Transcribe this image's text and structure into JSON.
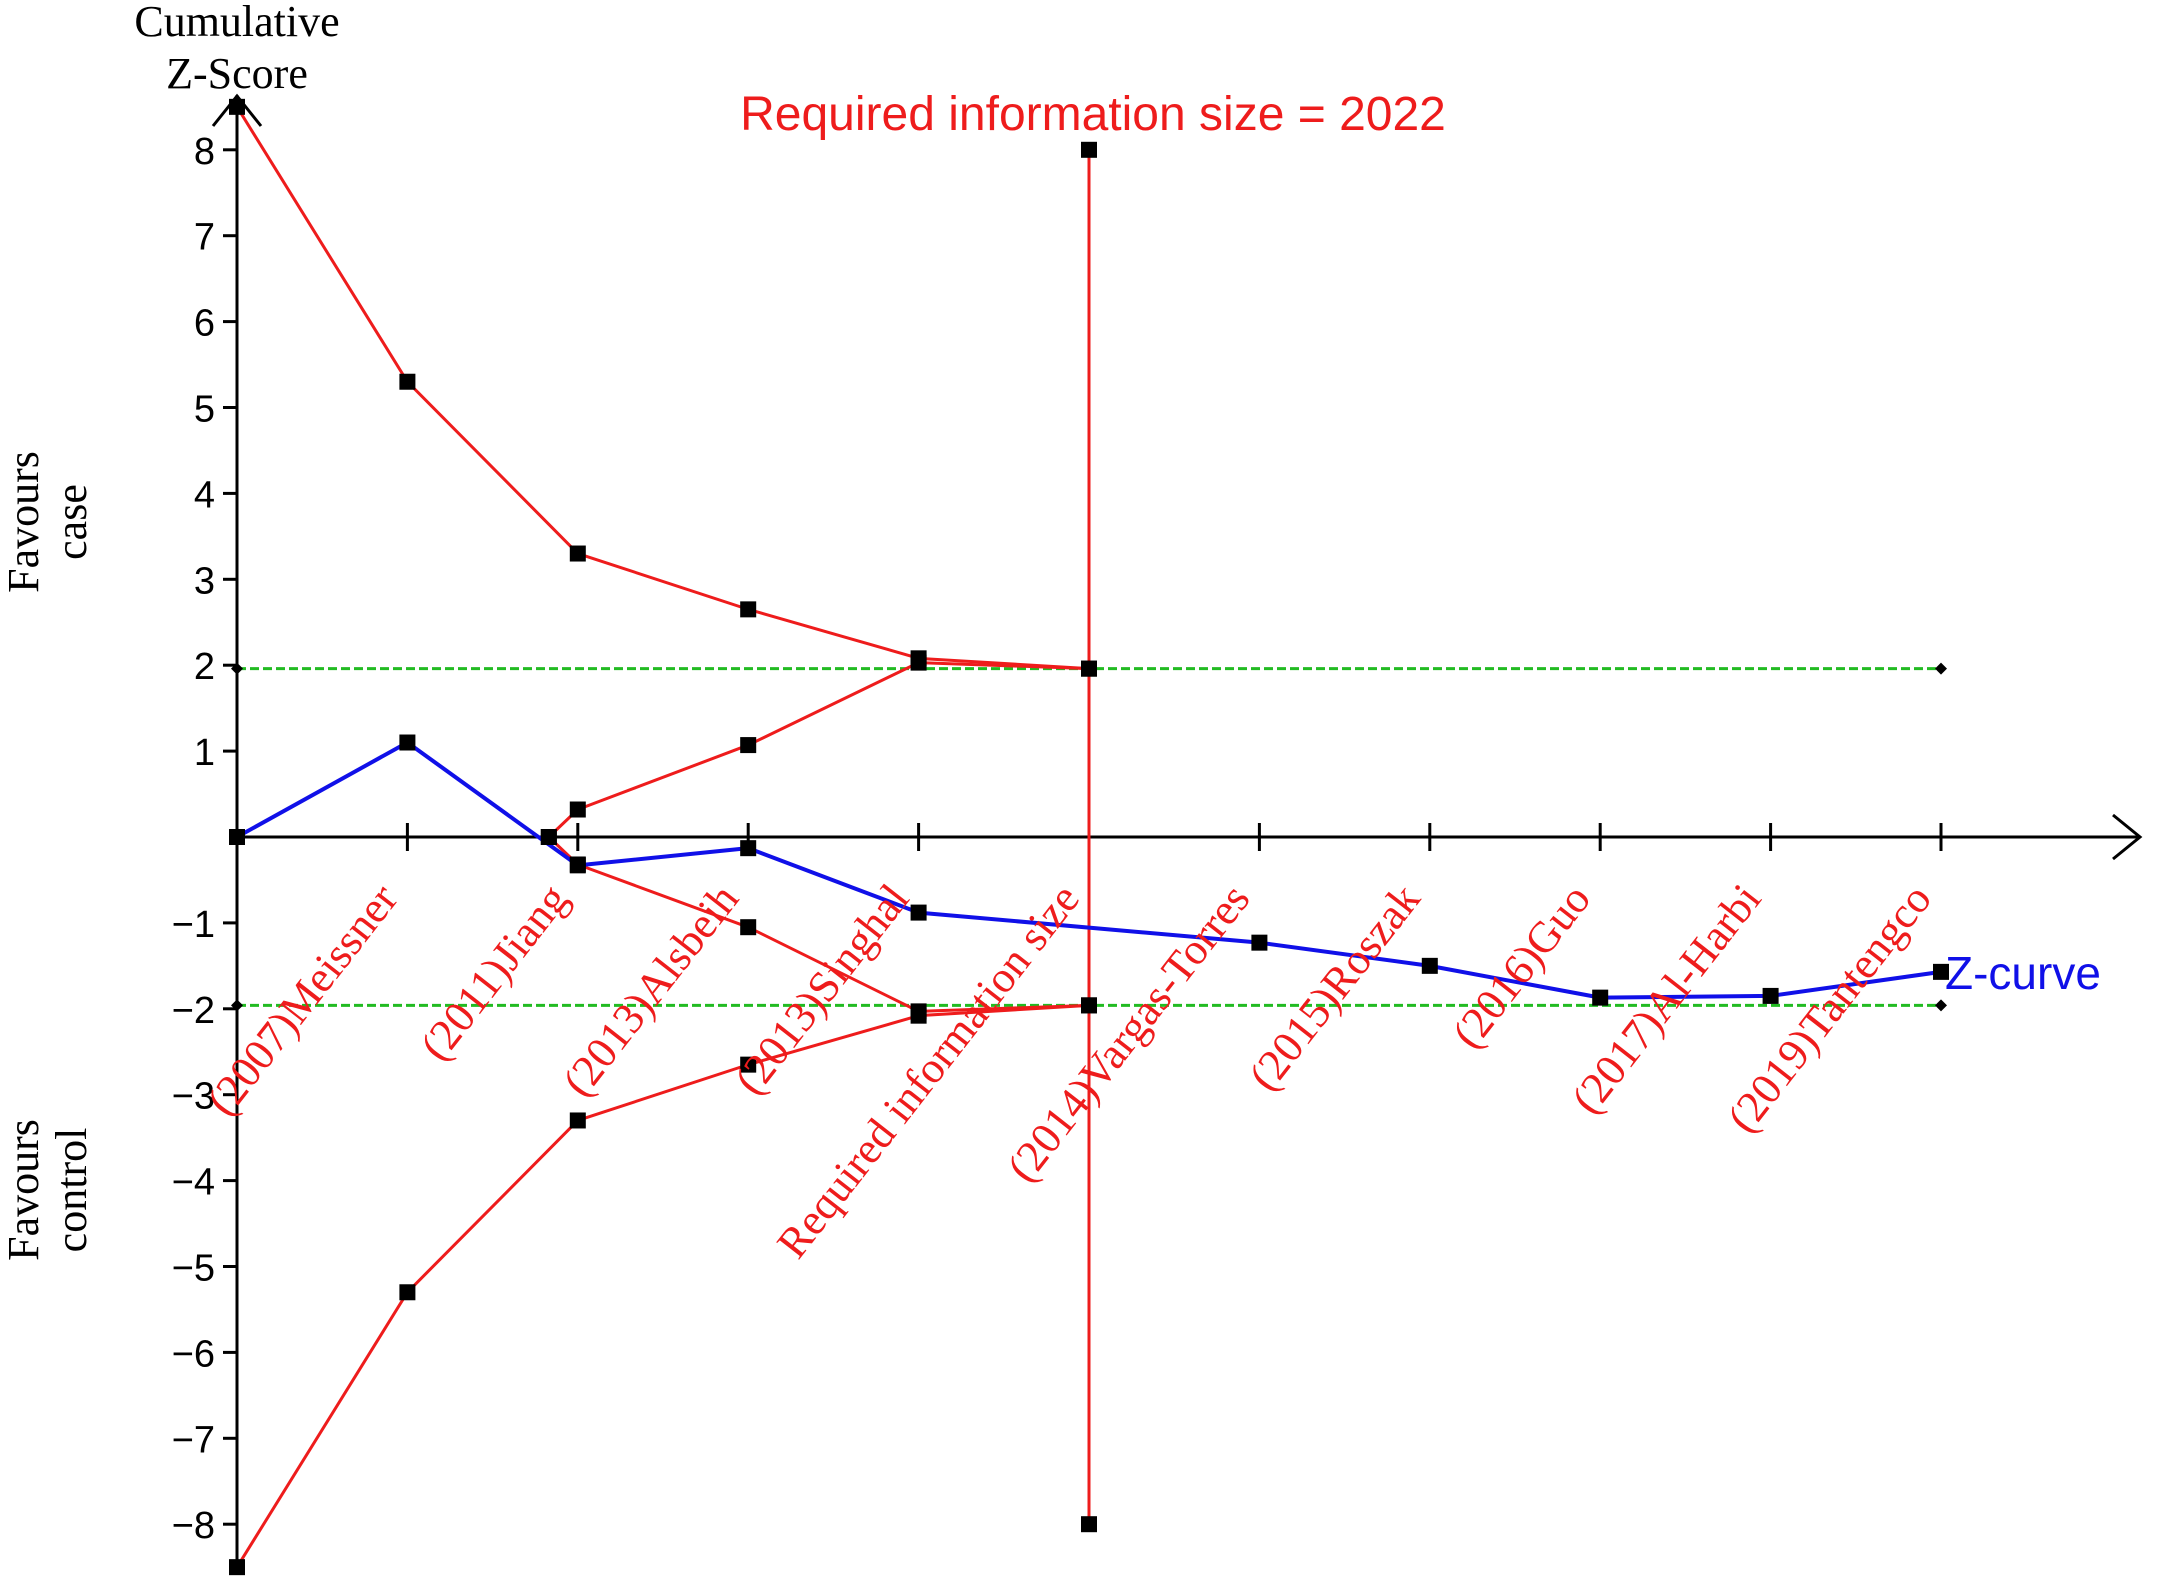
{
  "chart_data": {
    "type": "line",
    "y_axis_title": [
      "Cumulative",
      "Z-Score"
    ],
    "side_labels": {
      "upper": [
        "Favours",
        "case"
      ],
      "lower": [
        "Favours",
        "control"
      ]
    },
    "ylim": [
      -8.5,
      8.5
    ],
    "y_ticks": [
      -8,
      -7,
      -6,
      -5,
      -4,
      -3,
      -2,
      -1,
      1,
      2,
      3,
      4,
      5,
      6,
      7,
      8
    ],
    "x_tick_positions": [
      0,
      1,
      2,
      3,
      4,
      5,
      6,
      7,
      8,
      9,
      10
    ],
    "required_information_size": {
      "label": "Required information size = 2022",
      "x": 5,
      "y_top": 8,
      "y_bottom": -8
    },
    "study_labels": [
      "(2007)Meissner",
      "(2011)Jiang",
      "(2013)Alsbeih",
      "(2013)Singhal",
      "Required information size",
      "(2014)Vargas-Torres",
      "(2015)Roszak",
      "(2016)Guo",
      "(2017)Al-Harbi",
      "(2019)Tantengco"
    ],
    "series": [
      {
        "key": "upper_boundary",
        "color": "#ee1c1c",
        "x": [
          0,
          1,
          2,
          3,
          4,
          5
        ],
        "y": [
          8.5,
          5.3,
          3.3,
          2.65,
          2.08,
          1.96
        ]
      },
      {
        "key": "lower_boundary",
        "color": "#ee1c1c",
        "x": [
          0,
          1,
          2,
          3,
          4,
          5
        ],
        "y": [
          -8.5,
          -5.3,
          -3.3,
          -2.65,
          -2.08,
          -1.96
        ]
      },
      {
        "key": "upper_futility",
        "color": "#ee1c1c",
        "x": [
          1.83,
          2,
          3,
          4,
          5
        ],
        "y": [
          0,
          0.32,
          1.07,
          2.03,
          1.96
        ]
      },
      {
        "key": "lower_futility",
        "color": "#ee1c1c",
        "x": [
          1.83,
          2,
          3,
          4,
          5
        ],
        "y": [
          0,
          -0.32,
          -1.05,
          -2.03,
          -1.96
        ]
      },
      {
        "name": "Z-curve",
        "color": "#1010e8",
        "x": [
          0,
          1,
          2,
          3,
          4,
          6,
          7,
          8,
          9,
          10
        ],
        "y": [
          0,
          1.1,
          -0.33,
          -0.13,
          -0.88,
          -1.23,
          -1.5,
          -1.87,
          -1.85,
          -1.57
        ]
      }
    ],
    "conventional_boundaries": {
      "color": "#22bb22",
      "values": [
        1.96,
        -1.96
      ]
    }
  }
}
